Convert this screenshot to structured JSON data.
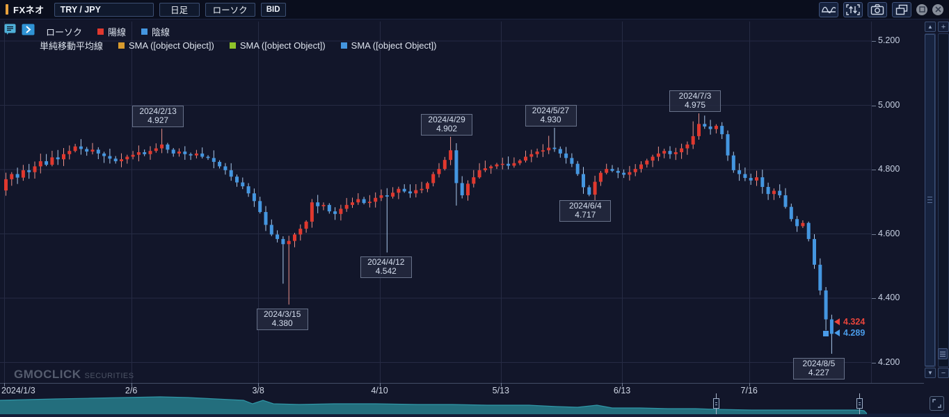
{
  "window": {
    "title": "FXネオ",
    "pair": "TRY / JPY",
    "timeframe": "日足",
    "chart_type": "ローソク",
    "price_side": "BID",
    "toolbar_icons": [
      "indicator-wave-icon",
      "data-transfer-icon",
      "camera-icon",
      "duplicate-window-icon"
    ],
    "window_buttons": [
      "maximize",
      "close"
    ]
  },
  "legend": {
    "candle_label": "ローソク",
    "bull_label": "陽線",
    "bear_label": "陰線",
    "sma_title": "単純移動平均線",
    "sma_items": [
      {
        "label": "SMA ([object Object])",
        "color": "#d89b2e"
      },
      {
        "label": "SMA ([object Object])",
        "color": "#8fc32a"
      },
      {
        "label": "SMA ([object Object])",
        "color": "#4496e0"
      }
    ]
  },
  "watermark": {
    "brand": "GMOCLICK",
    "suffix": "SECURITIES"
  },
  "colors": {
    "bull": "#e0382e",
    "bull_wick": "#ec9189",
    "bear": "#4496e0",
    "bear_wick": "#a9c9ec",
    "grid": "#262b44",
    "navigator": "#236e7d",
    "navigator_edge": "#2f97a7",
    "marker_red": "#e8453c",
    "marker_blue": "#4a9be8",
    "accent_orange": "#e8a23c"
  },
  "chart_data": {
    "type": "candlestick",
    "pair": "TRY/JPY",
    "timeframe": "daily",
    "y_ticks": [
      {
        "label": "5.200",
        "value": 5.2
      },
      {
        "label": "5.000",
        "value": 5.0
      },
      {
        "label": "4.800",
        "value": 4.8
      },
      {
        "label": "4.600",
        "value": 4.6
      },
      {
        "label": "4.400",
        "value": 4.4
      },
      {
        "label": "4.200",
        "value": 4.2
      }
    ],
    "x_ticks": [
      {
        "label": "2024/1/3",
        "index": 0,
        "align": "left"
      },
      {
        "label": "2/6",
        "index": 22
      },
      {
        "label": "3/8",
        "index": 44
      },
      {
        "label": "4/10",
        "index": 65
      },
      {
        "label": "5/13",
        "index": 86
      },
      {
        "label": "6/13",
        "index": 107
      },
      {
        "label": "7/16",
        "index": 129
      }
    ],
    "first_open": 4.735,
    "closes": [
      4.77,
      4.786,
      4.775,
      4.798,
      4.792,
      4.81,
      4.826,
      4.815,
      4.838,
      4.832,
      4.848,
      4.858,
      4.872,
      4.864,
      4.856,
      4.862,
      4.85,
      4.842,
      4.834,
      4.826,
      4.832,
      4.84,
      4.846,
      4.854,
      4.848,
      4.858,
      4.866,
      4.878,
      4.862,
      4.85,
      4.856,
      4.848,
      4.844,
      4.85,
      4.84,
      4.836,
      4.824,
      4.81,
      4.798,
      4.778,
      4.76,
      4.748,
      4.726,
      4.702,
      4.668,
      4.628,
      4.598,
      4.584,
      4.568,
      4.578,
      4.598,
      4.616,
      4.638,
      4.698,
      4.686,
      4.69,
      4.67,
      4.662,
      4.678,
      4.69,
      4.698,
      4.708,
      4.696,
      4.7,
      4.712,
      4.72,
      4.716,
      4.728,
      4.74,
      4.732,
      4.726,
      4.736,
      4.74,
      4.758,
      4.786,
      4.802,
      4.83,
      4.86,
      4.758,
      4.72,
      4.756,
      4.776,
      4.798,
      4.804,
      4.81,
      4.816,
      4.818,
      4.812,
      4.82,
      4.828,
      4.84,
      4.848,
      4.856,
      4.86,
      4.868,
      4.864,
      4.85,
      4.836,
      4.818,
      4.786,
      4.745,
      4.722,
      4.762,
      4.79,
      4.802,
      4.796,
      4.79,
      4.784,
      4.792,
      4.802,
      4.816,
      4.828,
      4.84,
      4.85,
      4.858,
      4.848,
      4.854,
      4.866,
      4.878,
      4.904,
      4.942,
      4.934,
      4.926,
      4.936,
      4.91,
      4.844,
      4.798,
      4.786,
      4.774,
      4.766,
      4.776,
      4.746,
      4.724,
      4.734,
      4.72,
      4.684,
      4.646,
      4.624,
      4.634,
      4.584,
      4.504,
      4.424,
      4.334,
      4.289
    ],
    "wick_overrides": {
      "27": {
        "high": 4.927
      },
      "48": {
        "low": 4.445
      },
      "49": {
        "low": 4.38
      },
      "66": {
        "low": 4.542
      },
      "77": {
        "high": 4.902
      },
      "78": {
        "low": 4.688
      },
      "94": {
        "high": 4.905
      },
      "95": {
        "high": 4.93
      },
      "101": {
        "low": 4.717
      },
      "119": {
        "high": 4.95
      },
      "120": {
        "high": 4.975
      },
      "121": {
        "high": 4.968
      },
      "142": {
        "low": 4.3
      },
      "143": {
        "low": 4.227
      }
    },
    "annotations": [
      {
        "date": "2024/2/13",
        "value": "4.927",
        "index": 27,
        "type": "high",
        "dx": 0
      },
      {
        "date": "2024/3/15",
        "value": "4.380",
        "index": 49,
        "type": "low",
        "dx": -4
      },
      {
        "date": "2024/4/12",
        "value": "4.542",
        "index": 66,
        "type": "low",
        "dx": 4
      },
      {
        "date": "2024/4/29",
        "value": "4.902",
        "index": 77,
        "type": "high",
        "dx": 0
      },
      {
        "date": "2024/5/27",
        "value": "4.930",
        "index": 95,
        "type": "high",
        "dx": 0
      },
      {
        "date": "2024/6/4",
        "value": "4.717",
        "index": 101,
        "type": "low",
        "dx": 0
      },
      {
        "date": "2024/7/3",
        "value": "4.975",
        "index": 120,
        "type": "high",
        "dx": 0
      },
      {
        "date": "2024/8/5",
        "value": "4.227",
        "index": 143,
        "type": "low",
        "dx": -13
      }
    ],
    "price_markers": [
      {
        "label": "4.324",
        "value": 4.324,
        "color": "#e8453c",
        "swatch": false
      },
      {
        "label": "4.289",
        "value": 4.289,
        "color": "#4a9be8",
        "swatch": true
      }
    ],
    "navigator": {
      "points": [
        [
          0,
          19
        ],
        [
          40,
          20
        ],
        [
          80,
          21
        ],
        [
          130,
          22
        ],
        [
          180,
          23
        ],
        [
          230,
          24
        ],
        [
          270,
          23
        ],
        [
          310,
          21
        ],
        [
          350,
          19
        ],
        [
          363,
          14
        ],
        [
          378,
          19
        ],
        [
          393,
          14
        ],
        [
          430,
          13
        ],
        [
          480,
          14
        ],
        [
          540,
          14
        ],
        [
          600,
          13
        ],
        [
          650,
          13
        ],
        [
          700,
          12
        ],
        [
          760,
          12
        ],
        [
          800,
          10
        ],
        [
          830,
          9
        ],
        [
          858,
          12
        ],
        [
          880,
          8
        ],
        [
          920,
          8
        ],
        [
          960,
          7
        ],
        [
          1000,
          7
        ],
        [
          1029,
          6
        ],
        [
          1080,
          5
        ],
        [
          1130,
          5
        ],
        [
          1180,
          5
        ],
        [
          1235,
          5
        ],
        [
          1242,
          4
        ],
        [
          1246,
          0
        ]
      ],
      "handles": [
        1029,
        1235
      ]
    }
  }
}
